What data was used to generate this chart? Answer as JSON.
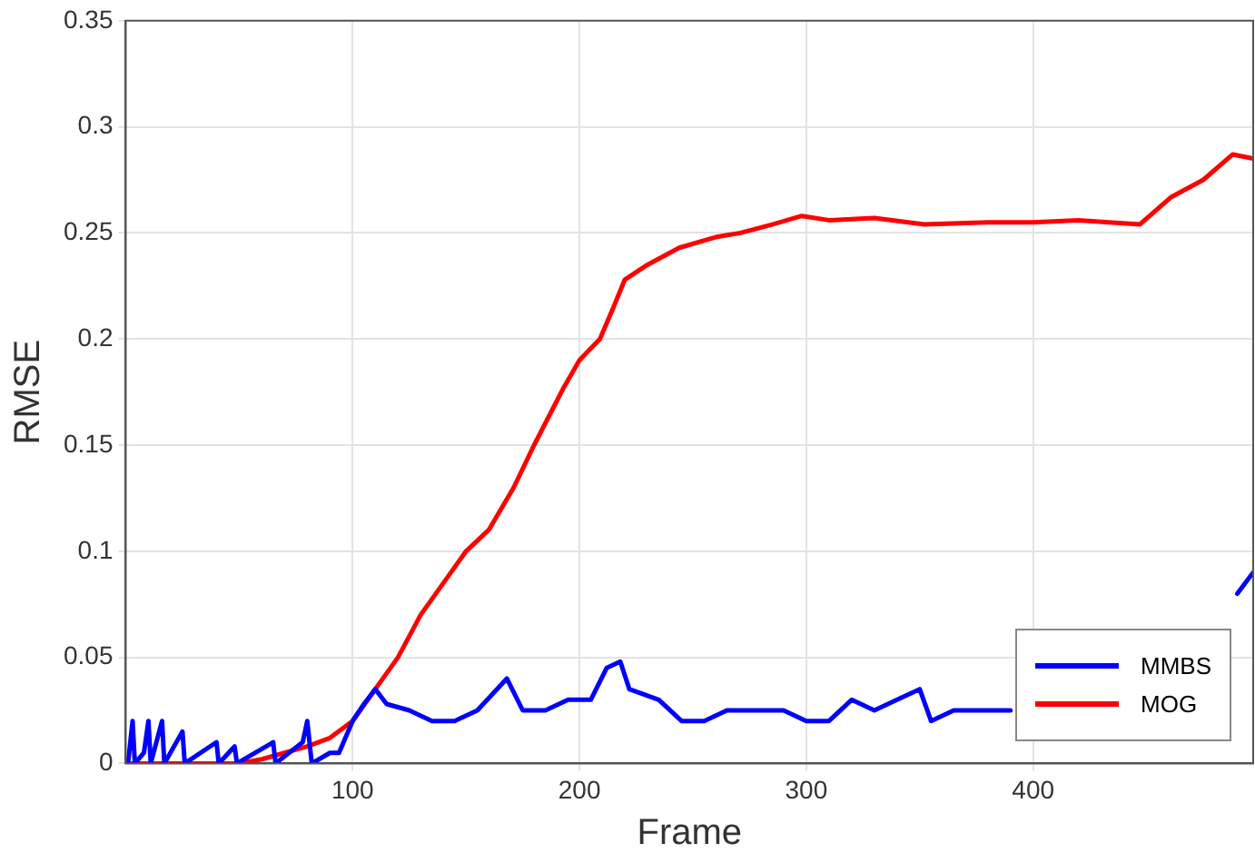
{
  "chart_data": {
    "type": "line",
    "xlabel": "Frame",
    "ylabel": "RMSE",
    "xlim": [
      0,
      497
    ],
    "xticks": [
      100,
      200,
      300,
      400
    ],
    "ylim": [
      0,
      0.35
    ],
    "yticks": [
      0,
      0.05,
      0.1,
      0.15,
      0.2,
      0.25,
      0.3,
      0.35
    ],
    "grid": true,
    "legend": "bottom right",
    "marker": "none",
    "line_style": "solid",
    "series": [
      {
        "name": "MMBS",
        "color": "#0000ff",
        "x": [
          1,
          3,
          4,
          8,
          10,
          11,
          16,
          17,
          25,
          26,
          40,
          41,
          48,
          49,
          65,
          66,
          78,
          80,
          82,
          90,
          94,
          100,
          105,
          110,
          115,
          125,
          135,
          145,
          155,
          168,
          175,
          185,
          195,
          205,
          212,
          218,
          222,
          235,
          245,
          255,
          265,
          280,
          290,
          300,
          310,
          320,
          330,
          340,
          350,
          355,
          365,
          380,
          390,
          488,
          490,
          497
        ],
        "values": [
          0,
          0.02,
          0,
          0.005,
          0.02,
          0,
          0.02,
          0,
          0.015,
          0,
          0.01,
          0,
          0.008,
          0,
          0.01,
          0,
          0.01,
          0.02,
          0,
          0.005,
          0.005,
          0.02,
          0.028,
          0.035,
          0.028,
          0.025,
          0.02,
          0.02,
          0.025,
          0.04,
          0.025,
          0.025,
          0.03,
          0.03,
          0.045,
          0.048,
          0.035,
          0.03,
          0.02,
          0.02,
          0.025,
          0.025,
          0.025,
          0.02,
          0.02,
          0.03,
          0.025,
          0.03,
          0.035,
          0.02,
          0.025,
          0.025,
          0.025,
          null,
          0.08,
          0.09
        ]
      },
      {
        "name": "MOG",
        "color": "#ff0000",
        "x": [
          1,
          50,
          60,
          70,
          80,
          90,
          100,
          110,
          120,
          130,
          140,
          150,
          160,
          171,
          180,
          193,
          200,
          209,
          215,
          220,
          230,
          244,
          260,
          271,
          285,
          298,
          310,
          330,
          352,
          380,
          400,
          420,
          447,
          461,
          475,
          488,
          497
        ],
        "values": [
          0,
          0,
          0.002,
          0.005,
          0.008,
          0.012,
          0.02,
          0.035,
          0.05,
          0.07,
          0.085,
          0.1,
          0.11,
          0.13,
          0.15,
          0.177,
          0.19,
          0.2,
          0.215,
          0.228,
          0.235,
          0.243,
          0.248,
          0.25,
          0.254,
          0.258,
          0.256,
          0.257,
          0.254,
          0.255,
          0.255,
          0.256,
          0.254,
          0.267,
          0.275,
          0.287,
          0.285
        ]
      }
    ]
  }
}
